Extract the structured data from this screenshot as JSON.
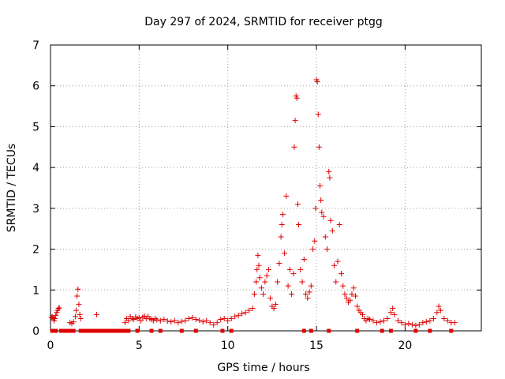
{
  "chart_data": {
    "type": "scatter",
    "title": "Day 297 of 2024, SRMTID for receiver ptgg",
    "xlabel": "GPS time / hours",
    "ylabel": "SRMTID / TECUs",
    "xlim": [
      0,
      24.3
    ],
    "ylim": [
      0,
      7
    ],
    "xticks": [
      0,
      5,
      10,
      15,
      20
    ],
    "xtick_labels": [
      "0",
      "5",
      "10",
      "15",
      "20"
    ],
    "yticks": [
      0,
      1,
      2,
      3,
      4,
      5,
      6,
      7
    ],
    "ytick_labels": [
      "0",
      "1",
      "2",
      "3",
      "4",
      "5",
      "6",
      "7"
    ],
    "grid": true,
    "marker": "+",
    "series": [
      {
        "name": "ptgg",
        "color": "#e00000",
        "points": [
          [
            0.05,
            0.33
          ],
          [
            0.1,
            0.34
          ],
          [
            0.15,
            0.32
          ],
          [
            0.2,
            0.25
          ],
          [
            0.25,
            0.3
          ],
          [
            0.3,
            0.38
          ],
          [
            0.35,
            0.45
          ],
          [
            0.4,
            0.5
          ],
          [
            0.45,
            0.55
          ],
          [
            0.5,
            0.56
          ],
          [
            1.1,
            0.2
          ],
          [
            1.2,
            0.18
          ],
          [
            1.3,
            0.22
          ],
          [
            1.4,
            0.35
          ],
          [
            1.45,
            0.5
          ],
          [
            1.5,
            0.85
          ],
          [
            1.55,
            1.02
          ],
          [
            1.6,
            0.65
          ],
          [
            1.65,
            0.4
          ],
          [
            1.7,
            0.3
          ],
          [
            2.6,
            0.4
          ],
          [
            4.2,
            0.2
          ],
          [
            4.3,
            0.3
          ],
          [
            4.4,
            0.25
          ],
          [
            4.5,
            0.35
          ],
          [
            4.6,
            0.3
          ],
          [
            4.7,
            0.28
          ],
          [
            4.8,
            0.34
          ],
          [
            4.9,
            0.3
          ],
          [
            5.0,
            0.32
          ],
          [
            5.1,
            0.25
          ],
          [
            5.2,
            0.33
          ],
          [
            5.3,
            0.36
          ],
          [
            5.4,
            0.3
          ],
          [
            5.5,
            0.35
          ],
          [
            5.6,
            0.3
          ],
          [
            5.7,
            0.28
          ],
          [
            5.8,
            0.25
          ],
          [
            5.9,
            0.3
          ],
          [
            6.0,
            0.27
          ],
          [
            6.2,
            0.25
          ],
          [
            6.4,
            0.28
          ],
          [
            6.6,
            0.24
          ],
          [
            6.8,
            0.22
          ],
          [
            7.0,
            0.25
          ],
          [
            7.2,
            0.2
          ],
          [
            7.4,
            0.23
          ],
          [
            7.6,
            0.25
          ],
          [
            7.8,
            0.3
          ],
          [
            8.0,
            0.32
          ],
          [
            8.2,
            0.28
          ],
          [
            8.4,
            0.26
          ],
          [
            8.6,
            0.22
          ],
          [
            8.8,
            0.25
          ],
          [
            9.0,
            0.2
          ],
          [
            9.2,
            0.15
          ],
          [
            9.4,
            0.2
          ],
          [
            9.6,
            0.28
          ],
          [
            9.8,
            0.3
          ],
          [
            10.0,
            0.25
          ],
          [
            10.2,
            0.3
          ],
          [
            10.4,
            0.35
          ],
          [
            10.6,
            0.38
          ],
          [
            10.8,
            0.42
          ],
          [
            11.0,
            0.45
          ],
          [
            11.2,
            0.5
          ],
          [
            11.4,
            0.55
          ],
          [
            11.5,
            0.9
          ],
          [
            11.6,
            1.2
          ],
          [
            11.65,
            1.5
          ],
          [
            11.7,
            1.85
          ],
          [
            11.75,
            1.6
          ],
          [
            11.8,
            1.3
          ],
          [
            11.9,
            1.05
          ],
          [
            12.0,
            0.9
          ],
          [
            12.1,
            1.2
          ],
          [
            12.2,
            1.35
          ],
          [
            12.3,
            1.5
          ],
          [
            12.4,
            0.8
          ],
          [
            12.5,
            0.6
          ],
          [
            12.6,
            0.55
          ],
          [
            12.7,
            0.65
          ],
          [
            12.8,
            1.2
          ],
          [
            12.9,
            1.65
          ],
          [
            13.0,
            2.3
          ],
          [
            13.05,
            2.6
          ],
          [
            13.1,
            2.85
          ],
          [
            13.2,
            1.9
          ],
          [
            13.3,
            3.3
          ],
          [
            13.4,
            1.1
          ],
          [
            13.5,
            1.5
          ],
          [
            13.6,
            0.9
          ],
          [
            13.7,
            1.4
          ],
          [
            13.75,
            4.5
          ],
          [
            13.8,
            5.15
          ],
          [
            13.85,
            5.75
          ],
          [
            13.9,
            5.7
          ],
          [
            13.95,
            3.1
          ],
          [
            14.0,
            2.6
          ],
          [
            14.1,
            1.5
          ],
          [
            14.2,
            1.2
          ],
          [
            14.3,
            1.75
          ],
          [
            14.4,
            0.9
          ],
          [
            14.5,
            0.8
          ],
          [
            14.6,
            0.95
          ],
          [
            14.7,
            1.1
          ],
          [
            14.8,
            2.0
          ],
          [
            14.9,
            2.2
          ],
          [
            14.95,
            3.0
          ],
          [
            15.0,
            6.15
          ],
          [
            15.05,
            6.1
          ],
          [
            15.1,
            5.3
          ],
          [
            15.15,
            4.5
          ],
          [
            15.2,
            3.55
          ],
          [
            15.25,
            3.2
          ],
          [
            15.3,
            2.9
          ],
          [
            15.4,
            2.8
          ],
          [
            15.5,
            2.3
          ],
          [
            15.6,
            2.0
          ],
          [
            15.7,
            3.9
          ],
          [
            15.75,
            3.75
          ],
          [
            15.8,
            2.7
          ],
          [
            15.9,
            2.45
          ],
          [
            16.0,
            1.6
          ],
          [
            16.1,
            1.2
          ],
          [
            16.2,
            1.7
          ],
          [
            16.3,
            2.6
          ],
          [
            16.4,
            1.4
          ],
          [
            16.5,
            1.1
          ],
          [
            16.6,
            0.9
          ],
          [
            16.7,
            0.8
          ],
          [
            16.8,
            0.7
          ],
          [
            16.9,
            0.75
          ],
          [
            17.0,
            0.9
          ],
          [
            17.1,
            1.05
          ],
          [
            17.2,
            0.85
          ],
          [
            17.3,
            0.6
          ],
          [
            17.4,
            0.5
          ],
          [
            17.5,
            0.45
          ],
          [
            17.6,
            0.4
          ],
          [
            17.7,
            0.3
          ],
          [
            17.8,
            0.25
          ],
          [
            17.9,
            0.3
          ],
          [
            18.0,
            0.28
          ],
          [
            18.2,
            0.25
          ],
          [
            18.4,
            0.2
          ],
          [
            18.6,
            0.22
          ],
          [
            18.8,
            0.25
          ],
          [
            19.0,
            0.3
          ],
          [
            19.2,
            0.45
          ],
          [
            19.3,
            0.55
          ],
          [
            19.4,
            0.4
          ],
          [
            19.6,
            0.25
          ],
          [
            19.8,
            0.2
          ],
          [
            20.0,
            0.15
          ],
          [
            20.2,
            0.18
          ],
          [
            20.4,
            0.15
          ],
          [
            20.6,
            0.13
          ],
          [
            20.8,
            0.15
          ],
          [
            21.0,
            0.2
          ],
          [
            21.2,
            0.22
          ],
          [
            21.4,
            0.25
          ],
          [
            21.6,
            0.3
          ],
          [
            21.8,
            0.45
          ],
          [
            21.9,
            0.6
          ],
          [
            22.0,
            0.5
          ],
          [
            22.2,
            0.3
          ],
          [
            22.4,
            0.25
          ],
          [
            22.6,
            0.2
          ],
          [
            22.8,
            0.2
          ]
        ],
        "zero_points": [
          0.1,
          0.2,
          0.3,
          0.6,
          0.8,
          1.0,
          1.2,
          1.3,
          1.7,
          1.8,
          1.9,
          2.0,
          2.1,
          2.2,
          2.3,
          2.4,
          2.6,
          2.7,
          2.8,
          2.9,
          3.0,
          3.1,
          3.2,
          3.3,
          3.4,
          3.5,
          3.6,
          3.7,
          3.8,
          3.9,
          4.1,
          4.2,
          4.4,
          4.9,
          5.7,
          6.2,
          7.4,
          8.2,
          9.7,
          10.2,
          14.3,
          14.7,
          15.7,
          17.3,
          18.7,
          19.2,
          20.6,
          21.4,
          22.6
        ]
      }
    ]
  }
}
